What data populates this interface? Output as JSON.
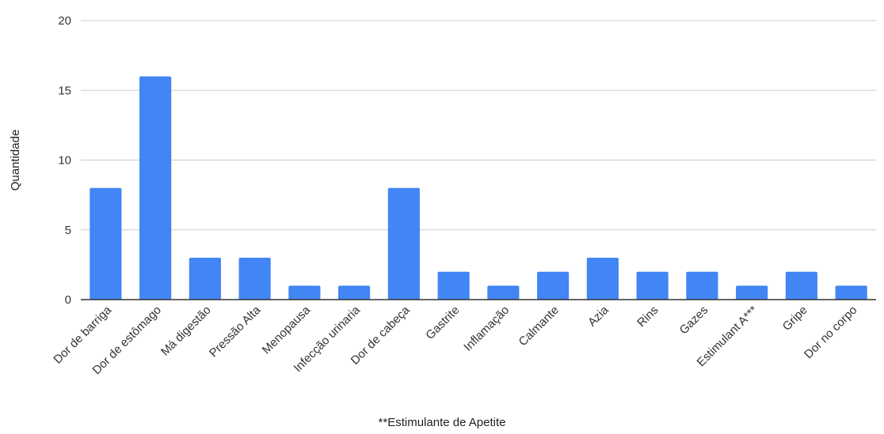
{
  "chart_data": {
    "type": "bar",
    "categories": [
      "Dor de barriga",
      "Dor de estômago",
      "Má digestão",
      "Pressão Alta",
      "Menopausa",
      "Infecção urinaria",
      "Dor de cabeça",
      "Gastrite",
      "Inflamação",
      "Calmante",
      "Azia",
      "Rins",
      "Gazes",
      "Estimulant A***",
      "Gripe",
      "Dor no corpo"
    ],
    "values": [
      8,
      16,
      3,
      3,
      1,
      1,
      8,
      2,
      1,
      2,
      3,
      2,
      2,
      1,
      2,
      1
    ],
    "title": "",
    "xlabel": "",
    "ylabel": "Quantidade",
    "ylim": [
      0,
      20
    ],
    "yticks": [
      0,
      5,
      10,
      15,
      20
    ],
    "grid": true,
    "bar_color": "#4285f4"
  },
  "footnote": "**Estimulante de Apetite"
}
